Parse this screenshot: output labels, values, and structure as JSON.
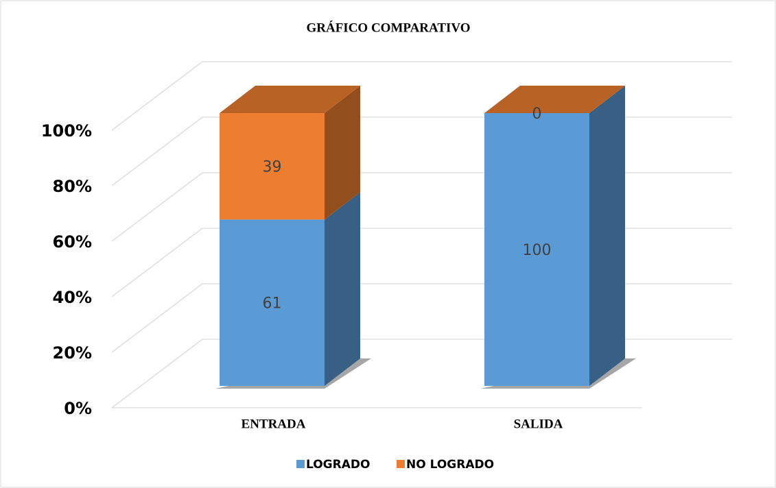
{
  "chart_data": {
    "type": "bar3d_stacked",
    "title": "GRÁFICO COMPARATIVO",
    "categories": [
      "ENTRADA",
      "SALIDA"
    ],
    "series": [
      {
        "name": "LOGRADO",
        "color": "#5b9bd5",
        "values": [
          61,
          100
        ]
      },
      {
        "name": "NO LOGRADO",
        "color": "#ed7d31",
        "values": [
          39,
          0
        ]
      }
    ],
    "ylim": [
      0,
      100
    ],
    "yticks": [
      {
        "value": 0,
        "label": "0%"
      },
      {
        "value": 20,
        "label": "20%"
      },
      {
        "value": 40,
        "label": "40%"
      },
      {
        "value": 60,
        "label": "60%"
      },
      {
        "value": 80,
        "label": "80%"
      },
      {
        "value": 100,
        "label": "100%"
      }
    ],
    "grid": true,
    "legend": "bottom"
  }
}
